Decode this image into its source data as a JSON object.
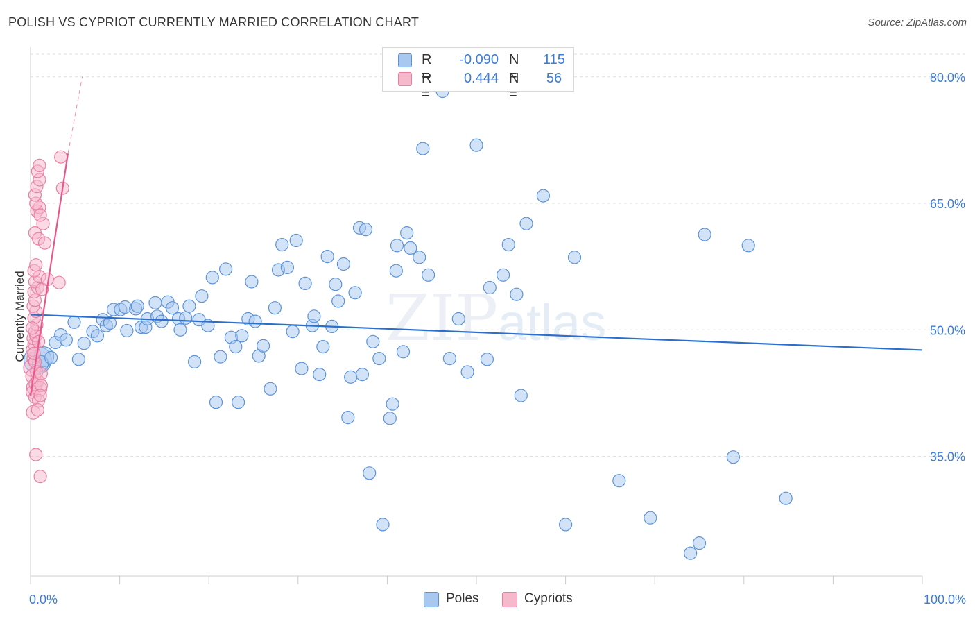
{
  "title": "POLISH VS CYPRIOT CURRENTLY MARRIED CORRELATION CHART",
  "source": "Source: ZipAtlas.com",
  "watermark": {
    "zip": "ZIP",
    "atlas": "atlas"
  },
  "legend_box": {
    "poles": {
      "r_label": "R =",
      "r_value": "-0.090",
      "n_label": "N =",
      "n_value": "115"
    },
    "cypriots": {
      "r_label": "R =",
      "r_value": "0.444",
      "n_label": "N =",
      "n_value": "56"
    }
  },
  "bottom_legend": {
    "poles": "Poles",
    "cypriots": "Cypriots"
  },
  "colors": {
    "poles_fill": "#a8c8f0",
    "poles_stroke": "#5b93d8",
    "poles_line": "#2a6fcc",
    "cypriots_fill": "#f6b8cb",
    "cypriots_stroke": "#e87fa3",
    "cypriots_line": "#e8578b",
    "axis_label": "#3d7cd6",
    "grid": "#dddddd"
  },
  "chart_data": {
    "type": "scatter",
    "title": "POLISH VS CYPRIOT CURRENTLY MARRIED CORRELATION CHART",
    "xlabel": "",
    "ylabel": "Currently Married",
    "xlim": [
      0,
      100
    ],
    "ylim": [
      20.8,
      82.7
    ],
    "x_tick_labels": [
      "0.0%",
      "100.0%"
    ],
    "y_ticks": [
      35,
      50,
      65,
      80
    ],
    "y_tick_labels": [
      "35.0%",
      "50.0%",
      "65.0%",
      "80.0%"
    ],
    "grid": true,
    "legend": "top-center",
    "series": [
      {
        "name": "Poles",
        "r": -0.09,
        "n": 115,
        "trend": {
          "x": [
            0,
            100
          ],
          "y": [
            51.8,
            47.6
          ]
        },
        "points": [
          [
            0.8,
            46.4,
            2.2
          ],
          [
            1.5,
            46.8,
            1.6
          ],
          [
            1.1,
            46.0,
            1.3
          ],
          [
            2.3,
            46.7,
            1.0
          ],
          [
            2.8,
            48.5,
            1.0
          ],
          [
            3.4,
            49.4,
            1.0
          ],
          [
            4.0,
            48.8,
            1.0
          ],
          [
            4.9,
            50.9,
            1.0
          ],
          [
            5.4,
            46.5,
            1.0
          ],
          [
            6.0,
            48.4,
            1.0
          ],
          [
            7.0,
            49.8,
            1.0
          ],
          [
            7.5,
            49.3,
            1.0
          ],
          [
            8.1,
            51.2,
            1.0
          ],
          [
            8.5,
            50.5,
            1.0
          ],
          [
            8.9,
            50.8,
            1.0
          ],
          [
            9.3,
            52.4,
            1.0
          ],
          [
            10.1,
            52.4,
            1.0
          ],
          [
            10.6,
            52.7,
            1.0
          ],
          [
            10.8,
            49.9,
            1.0
          ],
          [
            11.8,
            52.5,
            1.0
          ],
          [
            12.0,
            52.8,
            1.0
          ],
          [
            12.4,
            50.3,
            1.0
          ],
          [
            12.9,
            50.3,
            1.0
          ],
          [
            13.1,
            51.3,
            1.0
          ],
          [
            14.0,
            53.2,
            1.0
          ],
          [
            14.2,
            51.6,
            1.0
          ],
          [
            14.7,
            51.0,
            1.0
          ],
          [
            15.4,
            53.3,
            1.0
          ],
          [
            15.9,
            52.6,
            1.0
          ],
          [
            16.6,
            51.3,
            1.0
          ],
          [
            16.8,
            50.0,
            1.0
          ],
          [
            17.4,
            51.4,
            1.0
          ],
          [
            17.8,
            52.8,
            1.0
          ],
          [
            18.4,
            46.2,
            1.0
          ],
          [
            18.9,
            51.2,
            1.0
          ],
          [
            19.2,
            54.0,
            1.0
          ],
          [
            19.9,
            50.5,
            1.0
          ],
          [
            20.4,
            56.2,
            1.0
          ],
          [
            20.8,
            41.4,
            1.0
          ],
          [
            21.3,
            46.8,
            1.0
          ],
          [
            21.9,
            57.2,
            1.0
          ],
          [
            22.5,
            49.1,
            1.0
          ],
          [
            23.0,
            48.0,
            1.0
          ],
          [
            23.3,
            41.4,
            1.0
          ],
          [
            23.7,
            49.3,
            1.0
          ],
          [
            24.4,
            51.3,
            1.0
          ],
          [
            24.8,
            55.7,
            1.0
          ],
          [
            25.2,
            51.0,
            1.0
          ],
          [
            25.6,
            46.9,
            1.0
          ],
          [
            26.1,
            48.1,
            1.0
          ],
          [
            26.9,
            43.0,
            1.0
          ],
          [
            27.4,
            52.6,
            1.0
          ],
          [
            27.8,
            57.1,
            1.0
          ],
          [
            28.2,
            60.1,
            1.0
          ],
          [
            28.8,
            57.4,
            1.0
          ],
          [
            29.4,
            49.8,
            1.0
          ],
          [
            29.8,
            60.6,
            1.0
          ],
          [
            30.4,
            45.4,
            1.0
          ],
          [
            30.8,
            55.5,
            1.0
          ],
          [
            31.6,
            50.5,
            1.0
          ],
          [
            31.8,
            51.6,
            1.0
          ],
          [
            32.4,
            44.7,
            1.0
          ],
          [
            32.8,
            48.0,
            1.0
          ],
          [
            33.3,
            58.7,
            1.0
          ],
          [
            33.8,
            50.4,
            1.0
          ],
          [
            34.2,
            55.4,
            1.0
          ],
          [
            34.5,
            53.4,
            1.0
          ],
          [
            35.1,
            57.8,
            1.0
          ],
          [
            35.6,
            39.6,
            1.0
          ],
          [
            35.9,
            44.4,
            1.0
          ],
          [
            36.4,
            54.4,
            1.0
          ],
          [
            36.9,
            62.1,
            1.0
          ],
          [
            37.2,
            44.7,
            1.0
          ],
          [
            37.6,
            61.9,
            1.0
          ],
          [
            38.0,
            33.0,
            1.0
          ],
          [
            38.4,
            48.6,
            1.0
          ],
          [
            39.1,
            46.6,
            1.0
          ],
          [
            39.5,
            26.9,
            1.0
          ],
          [
            40.3,
            39.5,
            1.0
          ],
          [
            40.6,
            41.2,
            1.0
          ],
          [
            41.0,
            57.0,
            1.0
          ],
          [
            41.1,
            60.0,
            1.0
          ],
          [
            41.8,
            47.4,
            1.0
          ],
          [
            42.2,
            61.5,
            1.0
          ],
          [
            42.6,
            59.7,
            1.0
          ],
          [
            43.6,
            58.6,
            1.0
          ],
          [
            44.0,
            71.5,
            1.0
          ],
          [
            44.6,
            56.5,
            1.0
          ],
          [
            46.2,
            78.3,
            1.0
          ],
          [
            47.0,
            46.6,
            1.0
          ],
          [
            48.0,
            51.3,
            1.0
          ],
          [
            49.0,
            45.0,
            1.0
          ],
          [
            50.0,
            71.9,
            1.0
          ],
          [
            51.2,
            46.5,
            1.0
          ],
          [
            51.5,
            55.0,
            1.0
          ],
          [
            53.0,
            56.5,
            1.0
          ],
          [
            53.6,
            60.1,
            1.0
          ],
          [
            54.5,
            54.2,
            1.0
          ],
          [
            55.0,
            42.2,
            1.0
          ],
          [
            55.6,
            62.6,
            1.0
          ],
          [
            57.5,
            65.9,
            1.0
          ],
          [
            60.0,
            26.9,
            1.0
          ],
          [
            61.0,
            58.6,
            1.0
          ],
          [
            66.0,
            32.1,
            1.0
          ],
          [
            69.5,
            27.7,
            1.0
          ],
          [
            74.0,
            23.5,
            1.0
          ],
          [
            75.0,
            24.7,
            1.0
          ],
          [
            75.6,
            61.3,
            1.0
          ],
          [
            78.8,
            34.9,
            1.0
          ],
          [
            80.5,
            60.0,
            1.0
          ],
          [
            84.7,
            30.0,
            1.0
          ]
        ]
      },
      {
        "name": "Cypriots",
        "r": 0.444,
        "n": 56,
        "trend": {
          "x": [
            0,
            4.2
          ],
          "y": [
            42.2,
            70.9
          ],
          "dashed_to": [
            5.8,
            80.0
          ]
        },
        "points": [
          [
            0.2,
            45.5,
            1.4
          ],
          [
            0.3,
            44.5,
            1.2
          ],
          [
            0.4,
            43.2,
            1.2
          ],
          [
            0.2,
            42.6,
            1.0
          ],
          [
            0.3,
            40.2,
            1.1
          ],
          [
            0.5,
            42.0,
            1.0
          ],
          [
            0.6,
            43.6,
            1.1
          ],
          [
            0.8,
            44.0,
            1.0
          ],
          [
            1.0,
            43.0,
            1.2
          ],
          [
            1.2,
            43.4,
            1.0
          ],
          [
            0.9,
            41.6,
            1.0
          ],
          [
            1.1,
            42.2,
            1.0
          ],
          [
            0.8,
            40.5,
            1.0
          ],
          [
            0.6,
            35.2,
            1.0
          ],
          [
            1.1,
            32.6,
            1.0
          ],
          [
            0.3,
            46.6,
            1.0
          ],
          [
            0.5,
            46.2,
            1.0
          ],
          [
            0.2,
            47.6,
            1.0
          ],
          [
            0.4,
            48.3,
            1.0
          ],
          [
            0.3,
            49.0,
            1.0
          ],
          [
            0.6,
            49.3,
            1.0
          ],
          [
            0.5,
            49.8,
            1.0
          ],
          [
            0.7,
            50.6,
            1.0
          ],
          [
            0.4,
            51.4,
            1.0
          ],
          [
            0.6,
            52.2,
            1.0
          ],
          [
            0.3,
            52.8,
            1.0
          ],
          [
            0.5,
            53.5,
            1.0
          ],
          [
            0.4,
            54.5,
            1.0
          ],
          [
            0.8,
            55.0,
            1.0
          ],
          [
            0.5,
            55.7,
            1.0
          ],
          [
            1.0,
            56.3,
            1.0
          ],
          [
            0.4,
            57.0,
            1.0
          ],
          [
            0.6,
            57.7,
            1.0
          ],
          [
            1.3,
            54.8,
            1.0
          ],
          [
            1.9,
            56.0,
            1.0
          ],
          [
            3.2,
            55.6,
            1.0
          ],
          [
            0.5,
            61.5,
            1.0
          ],
          [
            0.9,
            60.8,
            1.0
          ],
          [
            1.6,
            60.3,
            1.0
          ],
          [
            1.4,
            62.6,
            1.0
          ],
          [
            0.7,
            64.1,
            1.0
          ],
          [
            1.0,
            64.5,
            1.0
          ],
          [
            0.6,
            65.0,
            1.0
          ],
          [
            1.1,
            63.6,
            1.0
          ],
          [
            0.5,
            66.0,
            1.0
          ],
          [
            0.7,
            67.0,
            1.0
          ],
          [
            1.0,
            67.8,
            1.0
          ],
          [
            0.8,
            68.8,
            1.0
          ],
          [
            1.0,
            69.5,
            1.0
          ],
          [
            3.6,
            66.8,
            1.0
          ],
          [
            3.4,
            70.5,
            1.0
          ],
          [
            0.4,
            47.2,
            1.0
          ],
          [
            0.9,
            48.6,
            1.0
          ],
          [
            0.2,
            50.2,
            1.0
          ],
          [
            0.7,
            45.0,
            1.0
          ],
          [
            1.2,
            44.8,
            1.0
          ]
        ]
      }
    ]
  }
}
